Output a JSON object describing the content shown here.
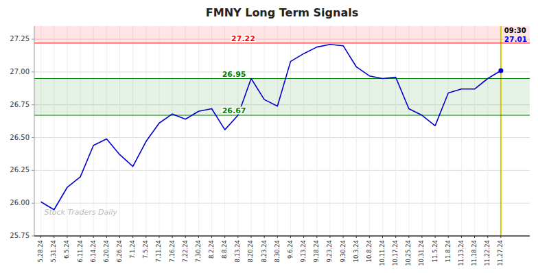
{
  "chart_data": {
    "type": "line",
    "title": "FMNY Long Term Signals",
    "categories": [
      "5.28.24",
      "5.31.24",
      "6.5.24",
      "6.11.24",
      "6.14.24",
      "6.20.24",
      "6.26.24",
      "7.1.24",
      "7.5.24",
      "7.11.24",
      "7.16.24",
      "7.22.24",
      "7.30.24",
      "8.2.24",
      "8.8.24",
      "8.13.24",
      "8.20.24",
      "8.23.24",
      "8.30.24",
      "9.6.24",
      "9.13.24",
      "9.18.24",
      "9.23.24",
      "9.30.24",
      "10.3.24",
      "10.8.24",
      "10.11.24",
      "10.17.24",
      "10.25.24",
      "10.31.24",
      "11.5.24",
      "11.8.24",
      "11.13.24",
      "11.18.24",
      "11.22.24",
      "11.27.24"
    ],
    "values": [
      26.01,
      25.95,
      26.12,
      26.2,
      26.44,
      26.49,
      26.37,
      26.28,
      26.47,
      26.61,
      26.68,
      26.64,
      26.7,
      26.72,
      26.56,
      26.67,
      26.95,
      26.79,
      26.74,
      27.08,
      27.14,
      27.19,
      27.21,
      27.2,
      27.04,
      26.97,
      26.95,
      26.96,
      26.72,
      26.67,
      26.59,
      26.84,
      26.87,
      26.87,
      26.95,
      27.01
    ],
    "color": "#0000cc",
    "ylim": [
      25.75,
      27.35
    ],
    "yticks": [
      25.75,
      {
        "value": 26.0,
        "label": "26.00"
      },
      26.25,
      {
        "value": 26.5,
        "label": "26.50"
      },
      26.75,
      {
        "value": 27.0,
        "label": "27.00"
      },
      27.25
    ],
    "grid": true,
    "reference_lines": [
      {
        "value": 27.22,
        "label": "27.22",
        "color": "red"
      },
      {
        "value": 26.95,
        "label": "26.95",
        "color": "green"
      },
      {
        "value": 26.67,
        "label": "26.67",
        "color": "green"
      }
    ],
    "bands": [
      {
        "from": 27.22,
        "to": 27.35,
        "color": "red"
      },
      {
        "from": 26.67,
        "to": 26.95,
        "color": "green"
      }
    ],
    "last_point": {
      "time_label": "09:30",
      "value_label": "27.01",
      "color": "blue",
      "line_color": "#cccc00"
    },
    "watermark": {
      "text": "Stock Traders Daily",
      "color": "#bbbbbb"
    }
  }
}
